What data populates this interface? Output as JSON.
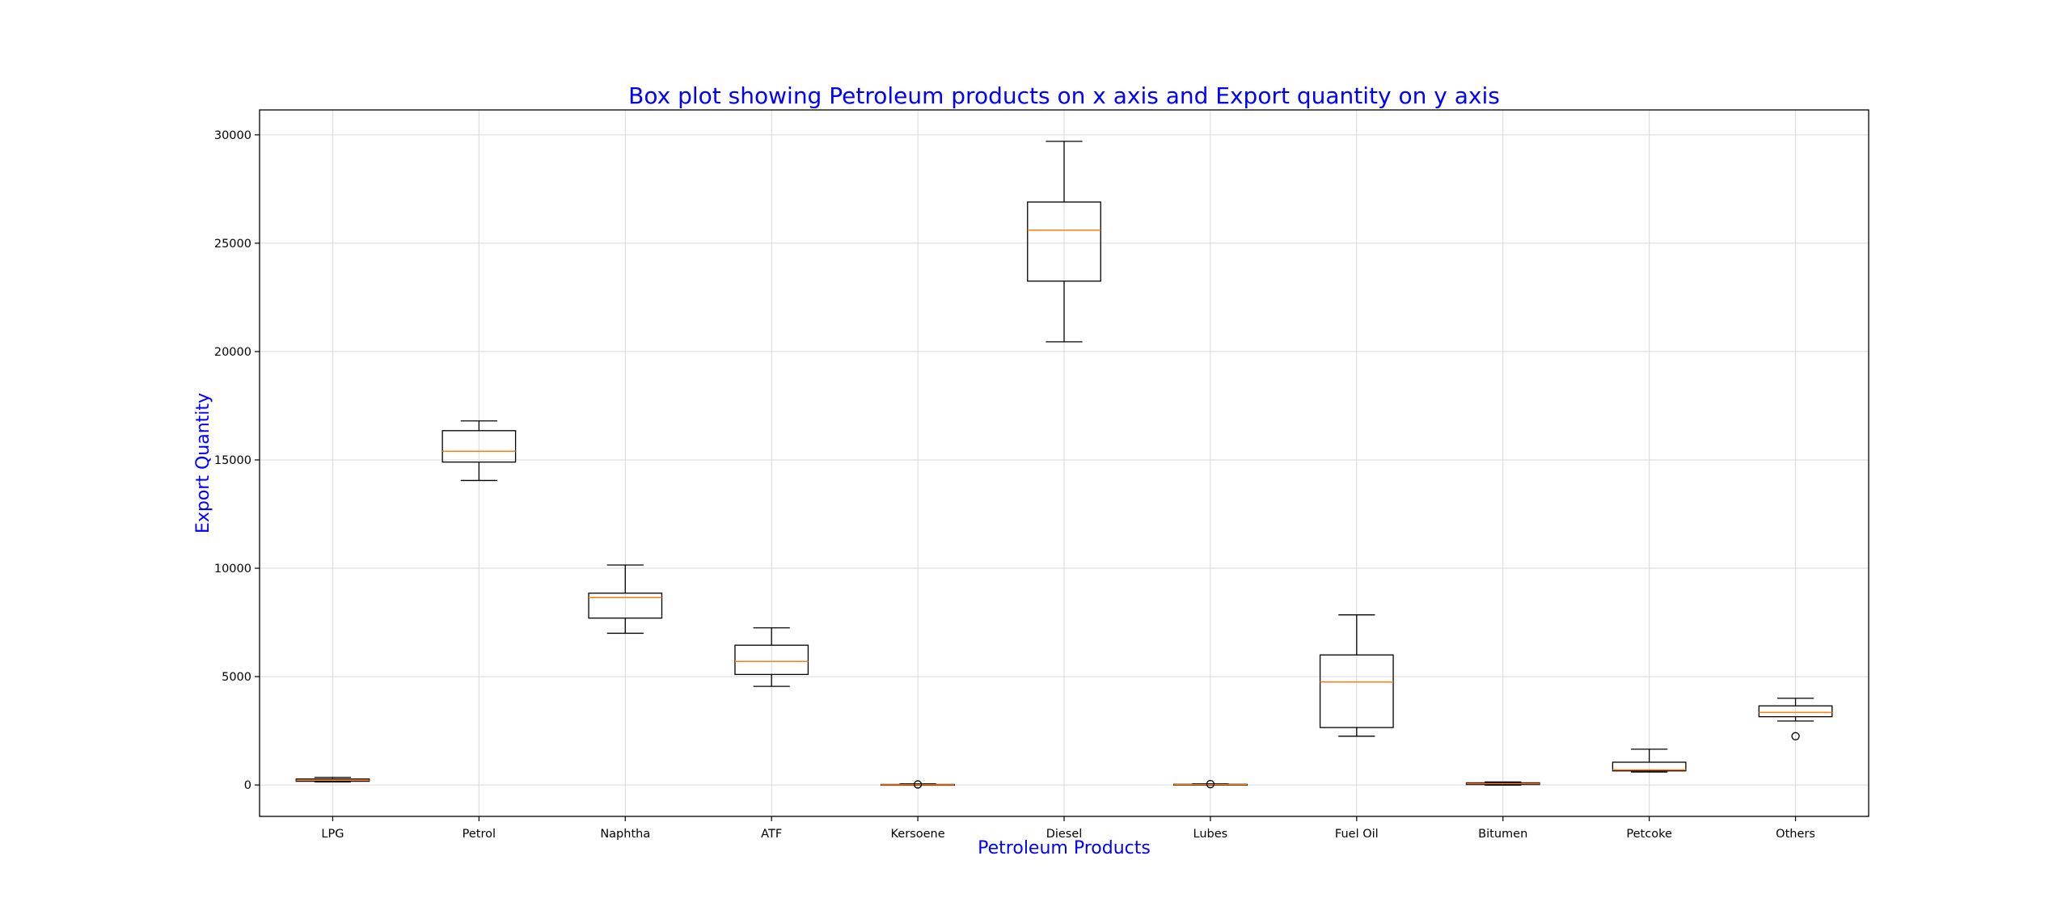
{
  "chart_data": {
    "type": "box",
    "title": "Box plot showing Petroleum products on x axis and Export quantity on y axis",
    "xlabel": "Petroleum Products",
    "ylabel": "Export Quantity",
    "ylim": [
      -1450,
      31150
    ],
    "y_ticks": [
      0,
      5000,
      10000,
      15000,
      20000,
      25000,
      30000
    ],
    "grid": true,
    "categories": [
      "LPG",
      "Petrol",
      "Naphtha",
      "ATF",
      "Kersoene",
      "Diesel",
      "Lubes",
      "Fuel Oil",
      "Bitumen",
      "Petcoke",
      "Others"
    ],
    "boxes": [
      {
        "min": 140,
        "q1": 170,
        "median": 215,
        "q3": 275,
        "max": 350,
        "outliers": []
      },
      {
        "min": 14050,
        "q1": 14900,
        "median": 15400,
        "q3": 16350,
        "max": 16800,
        "outliers": []
      },
      {
        "min": 7000,
        "q1": 7700,
        "median": 8650,
        "q3": 8850,
        "max": 10150,
        "outliers": []
      },
      {
        "min": 4550,
        "q1": 5100,
        "median": 5700,
        "q3": 6450,
        "max": 7250,
        "outliers": []
      },
      {
        "min": -10,
        "q1": 0,
        "median": 10,
        "q3": 25,
        "max": 50,
        "outliers": [
          25
        ]
      },
      {
        "min": 20450,
        "q1": 23250,
        "median": 25600,
        "q3": 26900,
        "max": 29700,
        "outliers": []
      },
      {
        "min": 0,
        "q1": 5,
        "median": 15,
        "q3": 30,
        "max": 50,
        "outliers": [
          40
        ]
      },
      {
        "min": 2250,
        "q1": 2650,
        "median": 4750,
        "q3": 6000,
        "max": 7850,
        "outliers": []
      },
      {
        "min": -10,
        "q1": 20,
        "median": 60,
        "q3": 100,
        "max": 140,
        "outliers": []
      },
      {
        "min": 600,
        "q1": 650,
        "median": 700,
        "q3": 1050,
        "max": 1650,
        "outliers": []
      },
      {
        "min": 2950,
        "q1": 3150,
        "median": 3350,
        "q3": 3650,
        "max": 4000,
        "outliers": [
          2250
        ]
      }
    ],
    "colors": {
      "title": "#0000ff",
      "axis_labels": "#0000ff",
      "box": "#000000",
      "median": "#ff7f0e",
      "grid": "#d9d9d9"
    }
  }
}
